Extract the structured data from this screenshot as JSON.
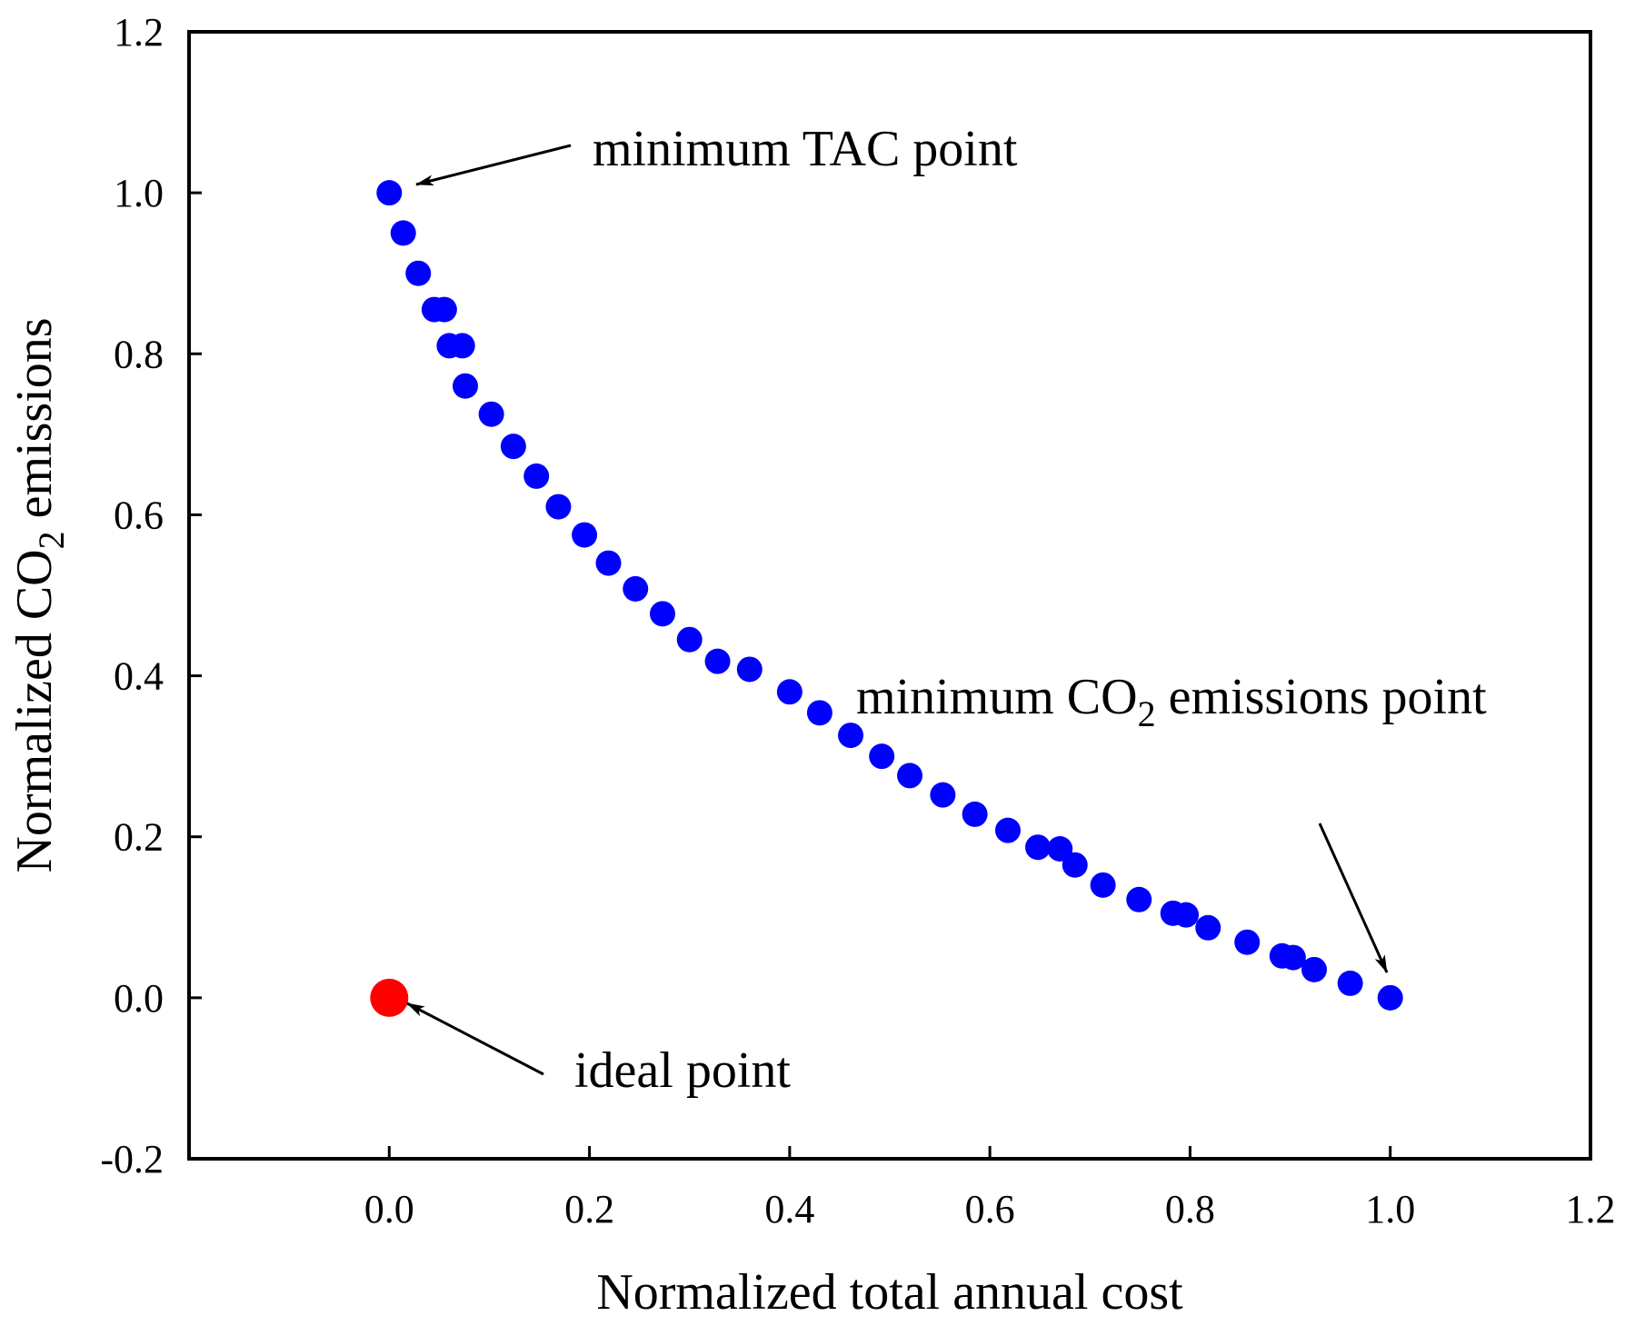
{
  "chart_data": {
    "type": "scatter",
    "title": "",
    "xlabel": "Normalized total annual cost",
    "ylabel": {
      "pre": "Normalized CO",
      "sub": "2",
      "post": " emissions"
    },
    "xlim": [
      -0.2,
      1.2
    ],
    "ylim": [
      -0.2,
      1.2
    ],
    "xticks": [
      "0.0",
      "0.2",
      "0.4",
      "0.6",
      "0.8",
      "1.0",
      "1.2"
    ],
    "yticks": [
      "-0.2",
      "0.0",
      "0.2",
      "0.4",
      "0.6",
      "0.8",
      "1.0",
      "1.2"
    ],
    "grid": false,
    "series": [
      {
        "color": "#0000ff",
        "x": [
          0.0,
          0.014,
          0.029,
          0.045,
          0.055,
          0.06,
          0.073,
          0.076,
          0.102,
          0.124,
          0.147,
          0.169,
          0.195,
          0.219,
          0.246,
          0.273,
          0.3,
          0.328,
          0.36,
          0.4,
          0.43,
          0.461,
          0.492,
          0.52,
          0.553,
          0.585,
          0.618,
          0.648,
          0.67,
          0.685,
          0.713,
          0.749,
          0.783,
          0.796,
          0.818,
          0.857,
          0.892,
          0.903,
          0.924,
          0.96,
          1.0
        ],
        "y": [
          1.0,
          0.95,
          0.9,
          0.855,
          0.855,
          0.81,
          0.81,
          0.76,
          0.725,
          0.685,
          0.648,
          0.61,
          0.575,
          0.54,
          0.508,
          0.477,
          0.445,
          0.418,
          0.408,
          0.38,
          0.354,
          0.326,
          0.3,
          0.276,
          0.252,
          0.228,
          0.208,
          0.187,
          0.185,
          0.165,
          0.14,
          0.122,
          0.105,
          0.103,
          0.087,
          0.069,
          0.052,
          0.05,
          0.035,
          0.018,
          0.0
        ]
      },
      {
        "color": "#ff0000",
        "x": [
          0.0
        ],
        "y": [
          0.0
        ]
      }
    ],
    "annotations": [
      {
        "text": "minimum TAC point",
        "target": [
          0.0,
          1.0
        ]
      },
      {
        "text_pre": "minimum CO",
        "text_sub": "2",
        "text_post": " emissions point",
        "target": [
          1.0,
          0.0
        ]
      },
      {
        "text": "ideal point",
        "target": [
          0.0,
          0.0
        ]
      }
    ]
  }
}
